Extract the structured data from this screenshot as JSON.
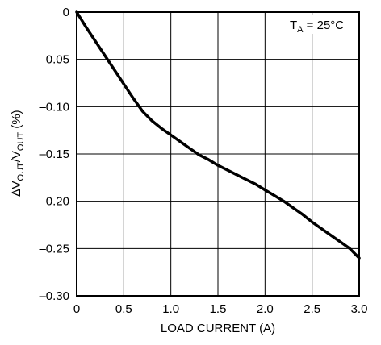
{
  "chart_data": {
    "type": "line",
    "xlabel": "LOAD CURRENT (A)",
    "ylabel": {
      "delta": "∆V",
      "sub1": "OUT",
      "slash": "/V",
      "sub2": "OUT",
      "unit": " (%)"
    },
    "annotation": {
      "main": "T",
      "sub": "A",
      "rest": " = 25°C"
    },
    "xlim": [
      0,
      3.0
    ],
    "ylim": [
      -0.3,
      0
    ],
    "x_ticks": [
      0,
      0.5,
      1.0,
      1.5,
      2.0,
      2.5,
      3.0
    ],
    "x_tick_labels": [
      "0",
      "0.5",
      "1.0",
      "1.5",
      "2.0",
      "2.5",
      "3.0"
    ],
    "y_ticks": [
      0,
      -0.05,
      -0.1,
      -0.15,
      -0.2,
      -0.25,
      -0.3
    ],
    "y_tick_labels": [
      "0",
      "–0.05",
      "–0.10",
      "–0.15",
      "–0.20",
      "–0.25",
      "–0.30"
    ],
    "grid": true,
    "series": [
      {
        "x": [
          0,
          0.1,
          0.2,
          0.3,
          0.4,
          0.5,
          0.6,
          0.7,
          0.8,
          0.9,
          1.0,
          1.1,
          1.2,
          1.3,
          1.4,
          1.5,
          1.6,
          1.7,
          1.8,
          1.9,
          2.0,
          2.1,
          2.2,
          2.3,
          2.4,
          2.5,
          2.6,
          2.7,
          2.8,
          2.9,
          3.0
        ],
        "y": [
          0,
          -0.016,
          -0.031,
          -0.046,
          -0.061,
          -0.076,
          -0.091,
          -0.105,
          -0.115,
          -0.123,
          -0.13,
          -0.137,
          -0.144,
          -0.151,
          -0.156,
          -0.162,
          -0.167,
          -0.172,
          -0.177,
          -0.182,
          -0.188,
          -0.194,
          -0.2,
          -0.207,
          -0.214,
          -0.222,
          -0.229,
          -0.236,
          -0.243,
          -0.25,
          -0.26
        ]
      }
    ]
  }
}
